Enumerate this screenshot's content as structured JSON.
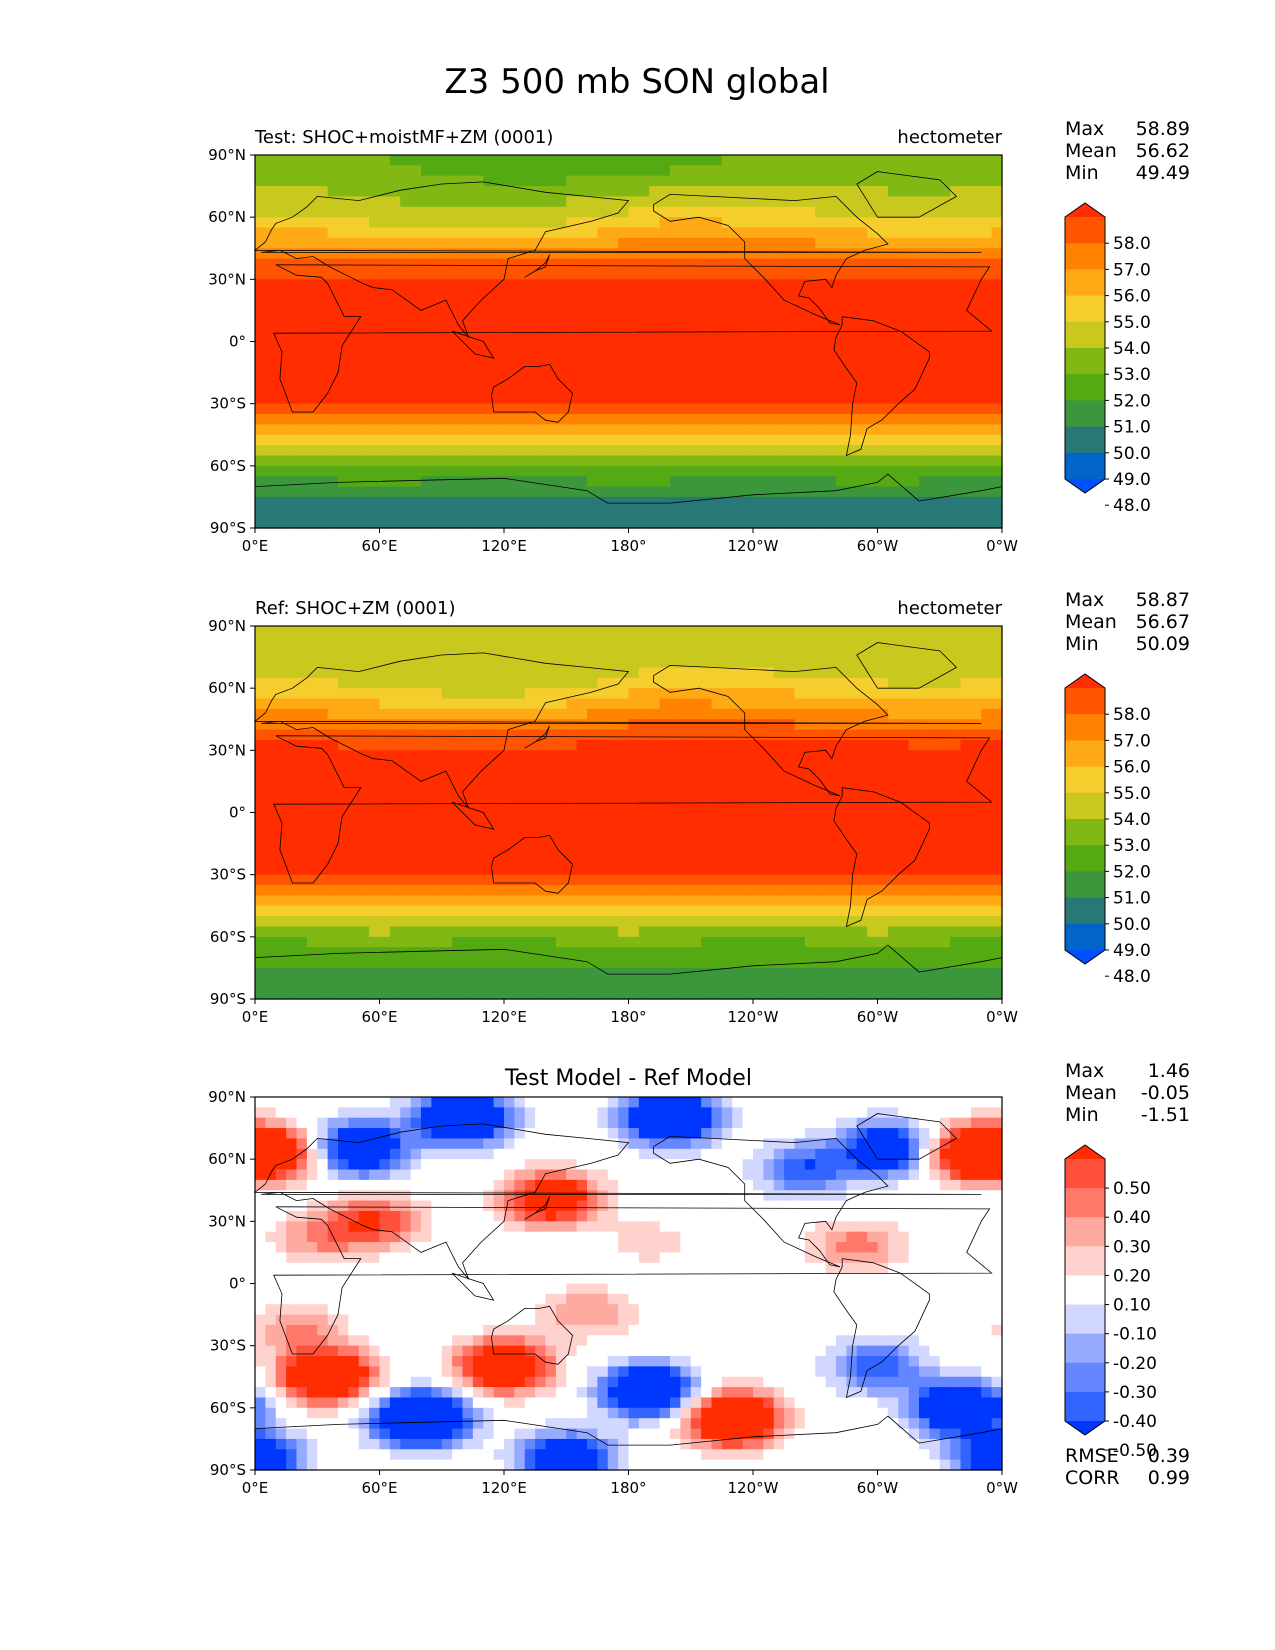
{
  "figure": {
    "title": "Z3 500 mb SON global"
  },
  "colors": {
    "field": [
      "#0050ff",
      "#0064c8",
      "#287878",
      "#3c963c",
      "#55aa14",
      "#82b814",
      "#c8c81e",
      "#f5cd2d",
      "#ffaa14",
      "#ff8200",
      "#ff5500",
      "#ff2d00"
    ],
    "diff": [
      "#0037ff",
      "#3264ff",
      "#6487ff",
      "#96aaff",
      "#d2d7ff",
      "#ffffff",
      "#ffd2cd",
      "#ffaaa0",
      "#ff7869",
      "#ff503c",
      "#ff2d00"
    ],
    "coast": "#000000"
  },
  "chart_data": [
    {
      "type": "contour_map",
      "panel": "test",
      "title_left": "Test: SHOC+moistMF+ZM (0001)",
      "title_right": "hectometer",
      "x_ticks": [
        "0°E",
        "60°E",
        "120°E",
        "180°",
        "120°W",
        "60°W",
        "0°W"
      ],
      "y_ticks": [
        "90°N",
        "60°N",
        "30°N",
        "0°",
        "30°S",
        "60°S",
        "90°S"
      ],
      "xlim": [
        0,
        360
      ],
      "ylim": [
        -90,
        90
      ],
      "stats": [
        {
          "label": "Max",
          "value": "58.89"
        },
        {
          "label": "Mean",
          "value": "56.62"
        },
        {
          "label": "Min",
          "value": "49.49"
        }
      ],
      "colorbar_levels": [
        "58.0",
        "57.0",
        "56.0",
        "55.0",
        "54.0",
        "53.0",
        "52.0",
        "51.0",
        "50.0",
        "49.0",
        "48.0"
      ],
      "zonal_profile": {
        "lat": [
          90,
          80,
          70,
          60,
          50,
          40,
          30,
          20,
          0,
          -20,
          -30,
          -40,
          -50,
          -60,
          -70,
          -80,
          -90
        ],
        "value": [
          52.0,
          52.4,
          53.4,
          54.2,
          55.5,
          57.0,
          58.2,
          58.6,
          58.7,
          58.6,
          58.1,
          56.3,
          54.0,
          52.0,
          50.6,
          49.6,
          49.5
        ]
      }
    },
    {
      "type": "contour_map",
      "panel": "ref",
      "title_left": "Ref: SHOC+ZM (0001)",
      "title_right": "hectometer",
      "x_ticks": [
        "0°E",
        "60°E",
        "120°E",
        "180°",
        "120°W",
        "60°W",
        "0°W"
      ],
      "y_ticks": [
        "90°N",
        "60°N",
        "30°N",
        "0°",
        "30°S",
        "60°S",
        "90°S"
      ],
      "xlim": [
        0,
        360
      ],
      "ylim": [
        -90,
        90
      ],
      "stats": [
        {
          "label": "Max",
          "value": "58.87"
        },
        {
          "label": "Mean",
          "value": "56.67"
        },
        {
          "label": "Min",
          "value": "50.09"
        }
      ],
      "colorbar_levels": [
        "58.0",
        "57.0",
        "56.0",
        "55.0",
        "54.0",
        "53.0",
        "52.0",
        "51.0",
        "50.0",
        "49.0",
        "48.0"
      ],
      "zonal_profile": {
        "lat": [
          90,
          80,
          70,
          60,
          50,
          40,
          30,
          20,
          0,
          -20,
          -30,
          -40,
          -50,
          -60,
          -70,
          -80,
          -90
        ],
        "value": [
          53.2,
          53.3,
          53.7,
          54.5,
          55.8,
          57.2,
          58.3,
          58.6,
          58.7,
          58.6,
          58.1,
          56.4,
          54.2,
          52.3,
          51.2,
          50.7,
          50.6
        ]
      }
    },
    {
      "type": "contour_map",
      "panel": "diff",
      "title_center": "Test Model - Ref Model",
      "x_ticks": [
        "0°E",
        "60°E",
        "120°E",
        "180°",
        "120°W",
        "60°W",
        "0°W"
      ],
      "y_ticks": [
        "90°N",
        "60°N",
        "30°N",
        "0°",
        "30°S",
        "60°S",
        "90°S"
      ],
      "xlim": [
        0,
        360
      ],
      "ylim": [
        -90,
        90
      ],
      "stats": [
        {
          "label": "Max",
          "value": "1.46"
        },
        {
          "label": "Mean",
          "value": "-0.05"
        },
        {
          "label": "Min",
          "value": "-1.51"
        }
      ],
      "metrics": [
        {
          "label": "RMSE",
          "value": "0.39"
        },
        {
          "label": "CORR",
          "value": "0.99"
        }
      ],
      "colorbar_levels": [
        "0.50",
        "0.40",
        "0.30",
        "0.20",
        "0.10",
        "-0.10",
        "-0.20",
        "-0.30",
        "-0.40",
        "-0.50"
      ],
      "anomalies": [
        {
          "lon": 345,
          "lat": 63,
          "amp": 0.9
        },
        {
          "lon": 10,
          "lat": 63,
          "amp": 0.8
        },
        {
          "lon": 143,
          "lat": 41,
          "amp": 0.8
        },
        {
          "lon": 58,
          "lat": 30,
          "amp": 0.5
        },
        {
          "lon": 30,
          "lat": 22,
          "amp": 0.3
        },
        {
          "lon": 290,
          "lat": 18,
          "amp": 0.35
        },
        {
          "lon": 190,
          "lat": 20,
          "amp": 0.15
        },
        {
          "lon": 35,
          "lat": -45,
          "amp": 1.0
        },
        {
          "lon": 120,
          "lat": -40,
          "amp": 0.9
        },
        {
          "lon": 20,
          "lat": -22,
          "amp": 0.3
        },
        {
          "lon": 160,
          "lat": -14,
          "amp": 0.3
        },
        {
          "lon": 230,
          "lat": -65,
          "amp": 1.1
        },
        {
          "lon": 50,
          "lat": 65,
          "amp": -0.9
        },
        {
          "lon": 100,
          "lat": 80,
          "amp": -1.0
        },
        {
          "lon": 200,
          "lat": 80,
          "amp": -1.0
        },
        {
          "lon": 305,
          "lat": 65,
          "amp": -0.8
        },
        {
          "lon": 265,
          "lat": 55,
          "amp": -0.5
        },
        {
          "lon": 80,
          "lat": -65,
          "amp": -1.2
        },
        {
          "lon": 190,
          "lat": -52,
          "amp": -1.0
        },
        {
          "lon": 340,
          "lat": -60,
          "amp": -1.0
        },
        {
          "lon": 300,
          "lat": -40,
          "amp": -0.5
        },
        {
          "lon": 150,
          "lat": -85,
          "amp": -0.8
        },
        {
          "lon": 0,
          "lat": -85,
          "amp": -0.8
        }
      ]
    }
  ]
}
